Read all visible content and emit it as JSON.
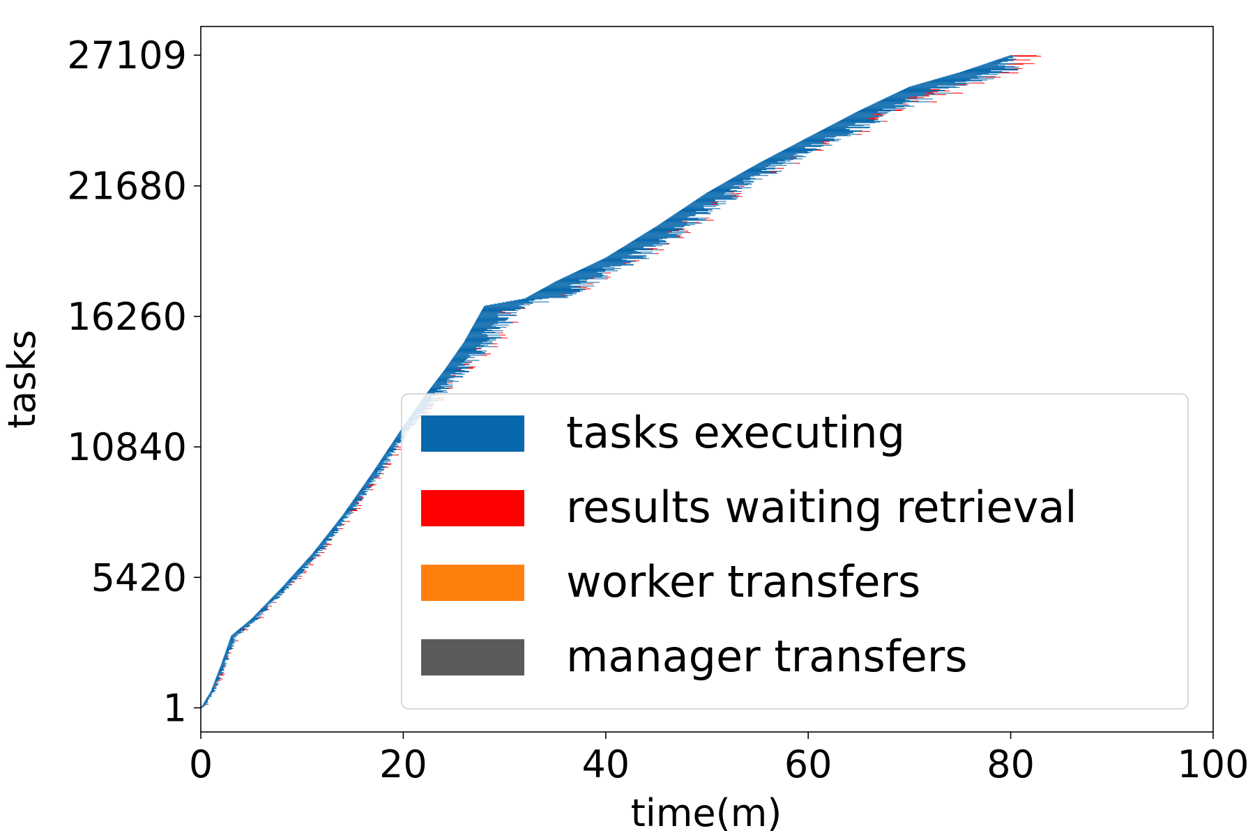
{
  "chart_data": {
    "type": "bar",
    "title": "",
    "xlabel": "time(m)",
    "ylabel": "tasks",
    "xlim": [
      0,
      100
    ],
    "ylim": [
      -1000,
      28300
    ],
    "x_ticks": [
      0,
      20,
      40,
      60,
      80,
      100
    ],
    "x_tick_labels": [
      "0",
      "20",
      "40",
      "60",
      "80",
      "100"
    ],
    "y_ticks": [
      1,
      5420,
      10840,
      16260,
      21680,
      27109
    ],
    "y_tick_labels": [
      "1",
      "5420",
      "10840",
      "16260",
      "21680",
      "27109"
    ],
    "grid": false,
    "legend_position": "lower-right",
    "colors": {
      "tasks_executing": "#0868ac",
      "results_waiting": "#ff0000",
      "worker_transfers": "#ff7f0e",
      "manager_transfers": "#5a5a5a"
    },
    "series": [
      {
        "name": "tasks executing",
        "color": "#0868ac",
        "task_start_time": [
          [
            0,
            1
          ],
          [
            1,
            700
          ],
          [
            2,
            1800
          ],
          [
            3,
            3000
          ],
          [
            5,
            3700
          ],
          [
            8,
            5000
          ],
          [
            11,
            6400
          ],
          [
            14,
            8000
          ],
          [
            17,
            9800
          ],
          [
            20,
            11700
          ],
          [
            22,
            12900
          ],
          [
            24,
            14000
          ],
          [
            26,
            15200
          ],
          [
            28,
            16700
          ],
          [
            32,
            17000
          ],
          [
            35,
            17700
          ],
          [
            40,
            18700
          ],
          [
            45,
            20000
          ],
          [
            50,
            21400
          ],
          [
            55,
            22600
          ],
          [
            60,
            23700
          ],
          [
            65,
            24800
          ],
          [
            70,
            25800
          ],
          [
            75,
            26400
          ],
          [
            80,
            27109
          ]
        ],
        "execution_duration_m": [
          [
            0,
            0.3
          ],
          [
            3,
            0.6
          ],
          [
            20,
            0.9
          ],
          [
            28,
            3.5
          ],
          [
            35,
            4.0
          ],
          [
            45,
            3.5
          ],
          [
            55,
            3.0
          ],
          [
            65,
            4.0
          ],
          [
            70,
            5.0
          ],
          [
            75,
            5.0
          ],
          [
            80,
            0.5
          ]
        ]
      },
      {
        "name": "results waiting retrieval",
        "color": "#ff0000",
        "waiting_duration_m": [
          [
            0,
            0.2
          ],
          [
            28,
            0.5
          ],
          [
            32,
            0.4
          ],
          [
            68,
            0.8
          ],
          [
            80,
            1.8
          ]
        ]
      },
      {
        "name": "worker transfers",
        "color": "#ff7f0e",
        "duration_m": []
      },
      {
        "name": "manager transfers",
        "color": "#5a5a5a",
        "duration_m": []
      }
    ],
    "legend": [
      "tasks executing",
      "results waiting retrieval",
      "worker transfers",
      "manager transfers"
    ]
  }
}
